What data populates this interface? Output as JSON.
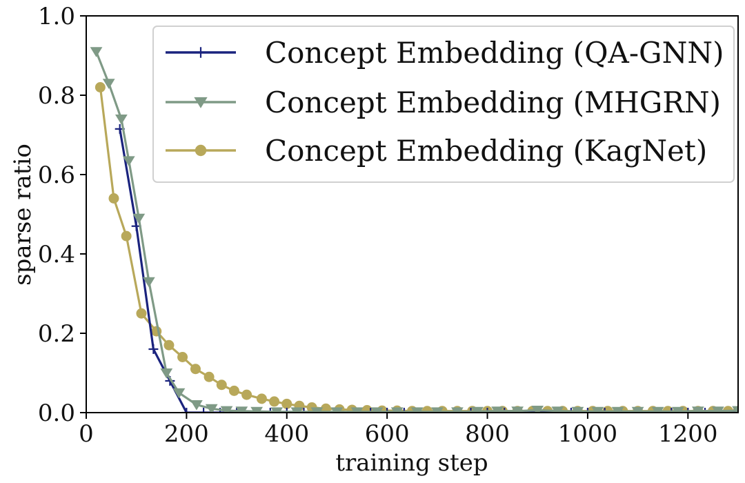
{
  "chart_data": {
    "type": "line",
    "title": "",
    "xlabel": "training step",
    "ylabel": "sparse ratio",
    "xlim": [
      0,
      1300
    ],
    "ylim": [
      0.0,
      1.0
    ],
    "xticks": [
      0,
      200,
      400,
      600,
      800,
      1000,
      1200
    ],
    "yticks": [
      0.0,
      0.2,
      0.4,
      0.6,
      0.8,
      1.0
    ],
    "xtick_labels": [
      "0",
      "200",
      "400",
      "600",
      "800",
      "1000",
      "1200"
    ],
    "ytick_labels": [
      "0.0",
      "0.2",
      "0.4",
      "0.6",
      "0.8",
      "1.0"
    ],
    "grid": false,
    "legend_position": "top-right",
    "series": [
      {
        "name": "Concept Embedding (QA-GNN)",
        "color": "#1a237e",
        "marker": "plus",
        "x": [
          67,
          100,
          134,
          167,
          200,
          234,
          267,
          300,
          334,
          367,
          400,
          434,
          467,
          500,
          534,
          567,
          600,
          634,
          667,
          700,
          734,
          767,
          800,
          834,
          867,
          900,
          934,
          967,
          1000,
          1034,
          1067,
          1100,
          1134,
          1167,
          1200,
          1234,
          1267,
          1300
        ],
        "y": [
          0.715,
          0.47,
          0.16,
          0.08,
          0.0,
          0.0,
          0.0,
          0.0,
          0.0,
          0.0,
          0.0,
          0.0,
          0.0,
          0.0,
          0.0,
          0.0,
          0.0,
          0.0,
          0.0,
          0.0,
          0.0,
          0.0,
          0.0,
          0.0,
          0.0,
          0.0,
          0.0,
          0.0,
          0.0,
          0.0,
          0.0,
          0.0,
          0.0,
          0.0,
          0.0,
          0.0,
          0.0,
          0.0
        ]
      },
      {
        "name": "Concept Embedding (MHGRN)",
        "color": "#7f9a86",
        "marker": "triangle-down",
        "x": [
          20,
          45,
          70,
          85,
          105,
          125,
          160,
          185,
          220,
          250,
          280,
          310,
          340,
          380,
          420,
          460,
          500,
          540,
          580,
          620,
          660,
          700,
          740,
          780,
          820,
          860,
          900,
          940,
          980,
          1020,
          1060,
          1100,
          1140,
          1180,
          1220,
          1260,
          1300
        ],
        "y": [
          0.91,
          0.83,
          0.74,
          0.635,
          0.49,
          0.33,
          0.1,
          0.05,
          0.02,
          0.01,
          0.005,
          0.004,
          0.003,
          0.002,
          0.002,
          0.002,
          0.002,
          0.002,
          0.002,
          0.002,
          0.002,
          0.002,
          0.002,
          0.003,
          0.004,
          0.004,
          0.006,
          0.004,
          0.003,
          0.003,
          0.003,
          0.003,
          0.003,
          0.003,
          0.004,
          0.004,
          0.005
        ]
      },
      {
        "name": "Concept Embedding (KagNet)",
        "color": "#b8a85a",
        "marker": "circle",
        "x": [
          28,
          55,
          80,
          110,
          140,
          165,
          192,
          218,
          245,
          270,
          295,
          320,
          350,
          375,
          400,
          425,
          450,
          478,
          505,
          530,
          560,
          590,
          620,
          650,
          680,
          710,
          740,
          770,
          800,
          830,
          860,
          890,
          920,
          950,
          980,
          1010,
          1040,
          1070,
          1100,
          1130,
          1160,
          1190,
          1220,
          1250,
          1280,
          1300
        ],
        "y": [
          0.82,
          0.54,
          0.445,
          0.25,
          0.205,
          0.17,
          0.14,
          0.11,
          0.09,
          0.07,
          0.055,
          0.045,
          0.035,
          0.028,
          0.022,
          0.017,
          0.013,
          0.01,
          0.008,
          0.007,
          0.006,
          0.005,
          0.005,
          0.004,
          0.004,
          0.004,
          0.004,
          0.004,
          0.004,
          0.004,
          0.004,
          0.004,
          0.004,
          0.004,
          0.004,
          0.004,
          0.004,
          0.004,
          0.004,
          0.004,
          0.004,
          0.004,
          0.004,
          0.004,
          0.004,
          0.004
        ]
      }
    ]
  }
}
